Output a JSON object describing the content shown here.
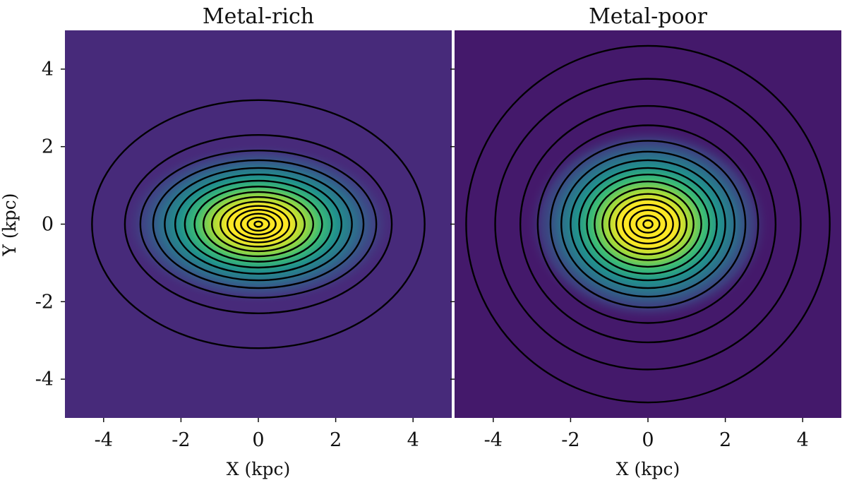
{
  "chart_data": [
    {
      "type": "heatmap",
      "title": "Metal-rich",
      "xlabel": "X (kpc)",
      "ylabel": "Y (kpc)",
      "xlim": [
        -5,
        5
      ],
      "ylim": [
        -5,
        5
      ],
      "xticks": [
        "-4",
        "-2",
        "0",
        "2",
        "4"
      ],
      "yticks": [
        "4",
        "2",
        "0",
        "-2",
        "-4"
      ],
      "grid": false,
      "colormap": "viridis",
      "background_color": "#472a7a",
      "contour_color": "#000000",
      "contours": [
        {
          "a": 0.1,
          "b": 0.07
        },
        {
          "a": 0.28,
          "b": 0.17
        },
        {
          "a": 0.45,
          "b": 0.27
        },
        {
          "a": 0.62,
          "b": 0.37
        },
        {
          "a": 0.8,
          "b": 0.47
        },
        {
          "a": 0.98,
          "b": 0.58
        },
        {
          "a": 1.2,
          "b": 0.7
        },
        {
          "a": 1.42,
          "b": 0.83
        },
        {
          "a": 1.65,
          "b": 0.97
        },
        {
          "a": 1.9,
          "b": 1.12
        },
        {
          "a": 2.15,
          "b": 1.28
        },
        {
          "a": 2.42,
          "b": 1.45
        },
        {
          "a": 2.72,
          "b": 1.65
        },
        {
          "a": 3.05,
          "b": 1.9
        },
        {
          "a": 3.45,
          "b": 2.3
        },
        {
          "a": 4.3,
          "b": 3.2
        }
      ],
      "peak_semi_axes": {
        "a": 1.6,
        "b": 0.95
      }
    },
    {
      "type": "heatmap",
      "title": "Metal-poor",
      "xlabel": "X (kpc)",
      "ylabel": "",
      "xlim": [
        -5,
        5
      ],
      "ylim": [
        -5,
        5
      ],
      "xticks": [
        "-4",
        "-2",
        "0",
        "2",
        "4"
      ],
      "yticks": [],
      "grid": false,
      "colormap": "viridis",
      "background_color": "#44196b",
      "contour_color": "#000000",
      "contours": [
        {
          "a": 0.12,
          "b": 0.1
        },
        {
          "a": 0.3,
          "b": 0.22
        },
        {
          "a": 0.47,
          "b": 0.36
        },
        {
          "a": 0.65,
          "b": 0.5
        },
        {
          "a": 0.82,
          "b": 0.64
        },
        {
          "a": 1.0,
          "b": 0.78
        },
        {
          "a": 1.18,
          "b": 0.93
        },
        {
          "a": 1.38,
          "b": 1.1
        },
        {
          "a": 1.58,
          "b": 1.28
        },
        {
          "a": 1.78,
          "b": 1.45
        },
        {
          "a": 2.0,
          "b": 1.65
        },
        {
          "a": 2.24,
          "b": 1.87
        },
        {
          "a": 2.52,
          "b": 2.15
        },
        {
          "a": 2.85,
          "b": 2.55
        },
        {
          "a": 3.3,
          "b": 3.05
        },
        {
          "a": 3.95,
          "b": 3.75
        },
        {
          "a": 4.7,
          "b": 4.6
        }
      ],
      "peak_semi_axes": {
        "a": 1.45,
        "b": 1.15
      }
    }
  ]
}
